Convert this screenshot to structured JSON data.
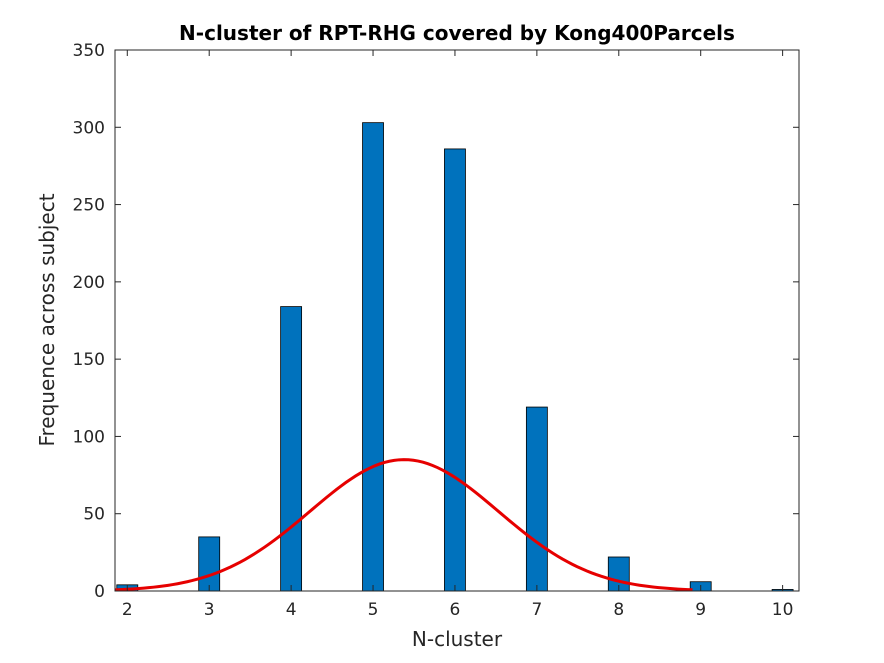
{
  "chart_data": {
    "type": "bar",
    "title": "N-cluster of RPT-RHG covered by Kong400Parcels",
    "xlabel": "N-cluster",
    "ylabel": "Frequence across subject",
    "xlim": [
      1.85,
      10.2
    ],
    "ylim": [
      0,
      350
    ],
    "x_ticks": [
      2,
      3,
      4,
      5,
      6,
      7,
      8,
      9,
      10
    ],
    "y_ticks": [
      0,
      50,
      100,
      150,
      200,
      250,
      300,
      350
    ],
    "grid": false,
    "series": [
      {
        "type": "bar",
        "x": [
          2,
          3,
          4,
          5,
          6,
          7,
          8,
          9,
          10
        ],
        "values": [
          4,
          35,
          184,
          303,
          286,
          119,
          22,
          6,
          1
        ],
        "color": "#0072BD"
      },
      {
        "type": "line",
        "mean": 5.38,
        "sd": 1.15,
        "x_range": [
          1.85,
          8.9
        ],
        "peak": 85,
        "color": "#E60000"
      }
    ]
  }
}
